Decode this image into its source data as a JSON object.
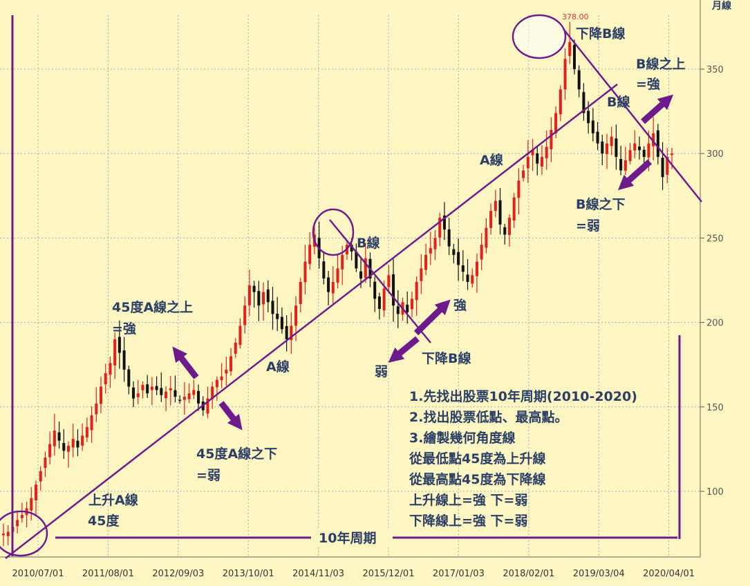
{
  "corner_label": "月線",
  "peak_label": "378.00",
  "chart_data": {
    "type": "candlestick",
    "period": "月線",
    "y_ticks": [
      100,
      150,
      200,
      250,
      300,
      350
    ],
    "x_ticks": [
      "2010/07/01",
      "2011/08/01",
      "2012/09/03",
      "2013/10/01",
      "2014/11/03",
      "2015/12/01",
      "2017/01/03",
      "2018/02/01",
      "2019/03/04",
      "2020/04/01"
    ],
    "ylim": [
      62,
      380
    ],
    "high": 378.0,
    "colors": {
      "up": "#e2211c",
      "down": "#111111",
      "lines": "#6d1a8a",
      "arrows": "#6d1a8a"
    },
    "closes": [
      75,
      76,
      79,
      83,
      86,
      90,
      96,
      104,
      112,
      120,
      128,
      136,
      130,
      124,
      127,
      131,
      126,
      133,
      138,
      145,
      152,
      162,
      170,
      176,
      190,
      182,
      172,
      162,
      155,
      158,
      163,
      158,
      162,
      160,
      157,
      159,
      161,
      156,
      154,
      156,
      158,
      160,
      152,
      148,
      155,
      162,
      166,
      168,
      172,
      180,
      188,
      198,
      210,
      222,
      218,
      210,
      218,
      212,
      205,
      202,
      196,
      190,
      198,
      210,
      224,
      236,
      246,
      252,
      238,
      226,
      218,
      224,
      232,
      240,
      246,
      242,
      232,
      226,
      238,
      226,
      214,
      208,
      220,
      228,
      210,
      205,
      212,
      206,
      214,
      224,
      232,
      240,
      244,
      250,
      262,
      255,
      245,
      240,
      234,
      230,
      224,
      228,
      236,
      246,
      256,
      266,
      272,
      258,
      252,
      262,
      274,
      284,
      290,
      298,
      302,
      294,
      298,
      304,
      314,
      324,
      338,
      356,
      366,
      350,
      338,
      324,
      318,
      312,
      306,
      300,
      306,
      310,
      298,
      290,
      296,
      302,
      306,
      302,
      298,
      306,
      312,
      298,
      286,
      298,
      300
    ]
  },
  "annotations": {
    "a_line_up": "上升A線",
    "a_line_45": "45度",
    "a_line_mid": "A線",
    "a_line_top": "A線",
    "above_a_1": "45度A線之上",
    "above_a_2": "=強",
    "below_a_1": "45度A線之下",
    "below_a_2": "=弱",
    "b_line_mid": "B線",
    "strong_mid": "強",
    "weak_mid": "弱",
    "down_b_mid": "下降B線",
    "down_b_top": "下降B線",
    "b_line_top": "B線",
    "above_b_1": "B線之上",
    "above_b_2": "=強",
    "below_b_1": "B線之下",
    "below_b_2": "=弱",
    "cycle": "10年周期"
  },
  "notes": [
    "1.先找出股票10年周期(2010-2020)",
    "2.找出股票低點、最高點。",
    "3.繪製幾何角度線",
    "從最低點45度為上升線",
    "從最高點45度為下降線",
    "上升線上=強 下=弱",
    "下降線上=強 下=弱"
  ]
}
